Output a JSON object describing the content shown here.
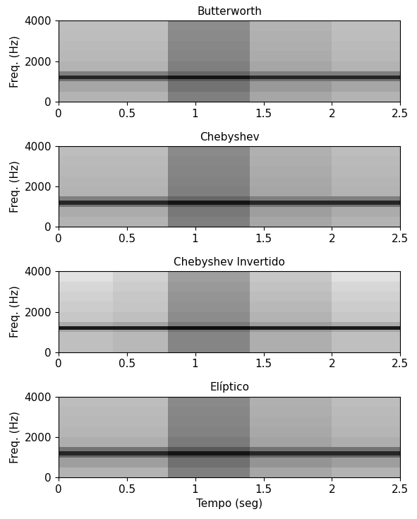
{
  "chart_data": [
    {
      "type": "spectrogram",
      "title": "Butterworth",
      "ylabel": "Freq. (Hz)",
      "xlim": [
        0,
        2.5
      ],
      "xticks": [
        0,
        0.5,
        1,
        1.5,
        2,
        2.5
      ],
      "ylim": [
        0,
        4000
      ],
      "yticks": [
        0,
        2000,
        4000
      ],
      "x_edges": [
        0,
        0.4,
        0.8,
        1.4,
        2.0,
        2.5
      ],
      "y_edges": [
        0,
        500,
        1000,
        1100,
        1300,
        1500,
        2000,
        2500,
        3000,
        3500,
        4000
      ],
      "value_range": [
        0,
        1
      ],
      "cells": [
        [
          0.3,
          0.3,
          0.5,
          0.35,
          0.3
        ],
        [
          0.35,
          0.35,
          0.55,
          0.4,
          0.35
        ],
        [
          0.55,
          0.55,
          0.65,
          0.55,
          0.55
        ],
        [
          0.85,
          0.85,
          0.92,
          0.85,
          0.85
        ],
        [
          0.5,
          0.5,
          0.6,
          0.5,
          0.5
        ],
        [
          0.3,
          0.3,
          0.5,
          0.35,
          0.3
        ],
        [
          0.28,
          0.28,
          0.48,
          0.33,
          0.28
        ],
        [
          0.27,
          0.27,
          0.47,
          0.32,
          0.27
        ],
        [
          0.26,
          0.26,
          0.46,
          0.31,
          0.26
        ],
        [
          0.25,
          0.25,
          0.45,
          0.3,
          0.25
        ]
      ]
    },
    {
      "type": "spectrogram",
      "title": "Chebyshev",
      "ylabel": "Freq. (Hz)",
      "xlim": [
        0,
        2.5
      ],
      "xticks": [
        0,
        0.5,
        1,
        1.5,
        2,
        2.5
      ],
      "ylim": [
        0,
        4000
      ],
      "yticks": [
        0,
        2000,
        4000
      ],
      "x_edges": [
        0,
        0.4,
        0.8,
        1.4,
        2.0,
        2.5
      ],
      "y_edges": [
        0,
        500,
        1000,
        1100,
        1300,
        1500,
        2000,
        2500,
        3000,
        3500,
        4000
      ],
      "value_range": [
        0,
        1
      ],
      "cells": [
        [
          0.3,
          0.3,
          0.5,
          0.35,
          0.3
        ],
        [
          0.33,
          0.33,
          0.53,
          0.38,
          0.33
        ],
        [
          0.55,
          0.55,
          0.65,
          0.55,
          0.55
        ],
        [
          0.85,
          0.85,
          0.92,
          0.85,
          0.85
        ],
        [
          0.5,
          0.5,
          0.6,
          0.5,
          0.5
        ],
        [
          0.3,
          0.3,
          0.5,
          0.35,
          0.3
        ],
        [
          0.29,
          0.29,
          0.49,
          0.34,
          0.29
        ],
        [
          0.28,
          0.28,
          0.48,
          0.33,
          0.28
        ],
        [
          0.27,
          0.27,
          0.47,
          0.32,
          0.27
        ],
        [
          0.26,
          0.26,
          0.46,
          0.31,
          0.26
        ]
      ]
    },
    {
      "type": "spectrogram",
      "title": "Chebyshev Invertido",
      "ylabel": "Freq. (Hz)",
      "xlim": [
        0,
        2.5
      ],
      "xticks": [
        0,
        0.5,
        1,
        1.5,
        2,
        2.5
      ],
      "ylim": [
        0,
        4000
      ],
      "yticks": [
        0,
        2000,
        4000
      ],
      "x_edges": [
        0,
        0.4,
        0.8,
        1.4,
        2.0,
        2.5
      ],
      "y_edges": [
        0,
        500,
        1000,
        1100,
        1300,
        1500,
        2000,
        2500,
        3000,
        3500,
        4000
      ],
      "value_range": [
        0,
        1
      ],
      "cells": [
        [
          0.25,
          0.28,
          0.48,
          0.32,
          0.25
        ],
        [
          0.25,
          0.28,
          0.48,
          0.32,
          0.25
        ],
        [
          0.35,
          0.38,
          0.55,
          0.4,
          0.35
        ],
        [
          0.9,
          0.9,
          0.95,
          0.9,
          0.9
        ],
        [
          0.33,
          0.36,
          0.52,
          0.38,
          0.33
        ],
        [
          0.22,
          0.25,
          0.45,
          0.3,
          0.22
        ],
        [
          0.2,
          0.23,
          0.43,
          0.28,
          0.2
        ],
        [
          0.18,
          0.22,
          0.42,
          0.26,
          0.18
        ],
        [
          0.16,
          0.2,
          0.4,
          0.24,
          0.16
        ],
        [
          0.12,
          0.18,
          0.38,
          0.22,
          0.12
        ]
      ]
    },
    {
      "type": "spectrogram",
      "title": "Elíptico",
      "ylabel": "Freq. (Hz)",
      "xlabel": "Tempo (seg)",
      "xlim": [
        0,
        2.5
      ],
      "xticks": [
        0,
        0.5,
        1,
        1.5,
        2,
        2.5
      ],
      "ylim": [
        0,
        4000
      ],
      "yticks": [
        0,
        2000,
        4000
      ],
      "x_edges": [
        0,
        0.4,
        0.8,
        1.4,
        2.0,
        2.5
      ],
      "y_edges": [
        0,
        500,
        1000,
        1100,
        1300,
        1500,
        2000,
        2500,
        3000,
        3500,
        4000
      ],
      "value_range": [
        0,
        1
      ],
      "cells": [
        [
          0.3,
          0.3,
          0.5,
          0.35,
          0.3
        ],
        [
          0.38,
          0.38,
          0.56,
          0.42,
          0.38
        ],
        [
          0.6,
          0.6,
          0.7,
          0.6,
          0.6
        ],
        [
          0.85,
          0.85,
          0.92,
          0.85,
          0.85
        ],
        [
          0.55,
          0.55,
          0.65,
          0.55,
          0.55
        ],
        [
          0.32,
          0.32,
          0.52,
          0.36,
          0.32
        ],
        [
          0.29,
          0.29,
          0.49,
          0.34,
          0.29
        ],
        [
          0.28,
          0.28,
          0.48,
          0.33,
          0.28
        ],
        [
          0.27,
          0.27,
          0.47,
          0.32,
          0.27
        ],
        [
          0.26,
          0.26,
          0.46,
          0.31,
          0.26
        ]
      ]
    }
  ]
}
